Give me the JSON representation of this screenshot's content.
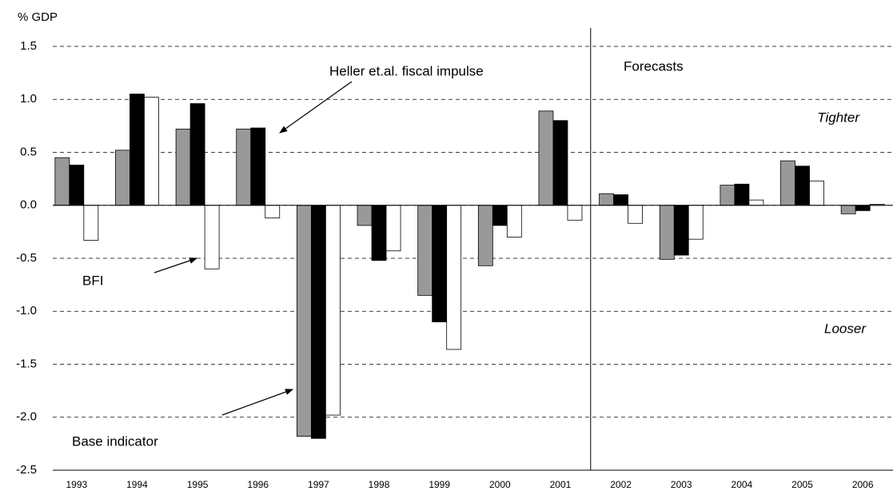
{
  "chart_data": {
    "type": "bar",
    "y_label": "% GDP",
    "categories": [
      "1993",
      "1994",
      "1995",
      "1996",
      "1997",
      "1998",
      "1999",
      "2000",
      "2001",
      "2002",
      "2003",
      "2004",
      "2005",
      "2006"
    ],
    "series": [
      {
        "name": "Base indicator",
        "color": "#999999",
        "values": [
          0.45,
          0.52,
          0.72,
          0.72,
          -2.18,
          -0.19,
          -0.85,
          -0.57,
          0.89,
          0.11,
          -0.51,
          0.19,
          0.42,
          -0.08
        ]
      },
      {
        "name": "Heller et.al. fiscal impulse",
        "color": "#000000",
        "values": [
          0.38,
          1.05,
          0.96,
          0.73,
          -2.2,
          -0.52,
          -1.1,
          -0.19,
          0.8,
          0.1,
          -0.47,
          0.2,
          0.37,
          -0.05
        ]
      },
      {
        "name": "BFI",
        "color": "#ffffff",
        "values": [
          -0.33,
          1.02,
          -0.6,
          -0.12,
          -1.98,
          -0.43,
          -1.36,
          -0.3,
          -0.14,
          -0.17,
          -0.32,
          0.05,
          0.23,
          0.01
        ]
      }
    ],
    "annotations": [
      "Forecasts",
      "Tighter",
      "Looser"
    ],
    "ylim": [
      -2.5,
      1.5
    ],
    "yticks": [
      1.5,
      {
        "value": 1,
        "label": "1.0"
      },
      0.5,
      {
        "value": 0,
        "label": "0.0"
      },
      -0.5,
      {
        "value": -1,
        "label": "-1.0"
      },
      -1.5,
      {
        "value": -2,
        "label": "-2.0"
      },
      -2.5
    ],
    "grid": true
  }
}
